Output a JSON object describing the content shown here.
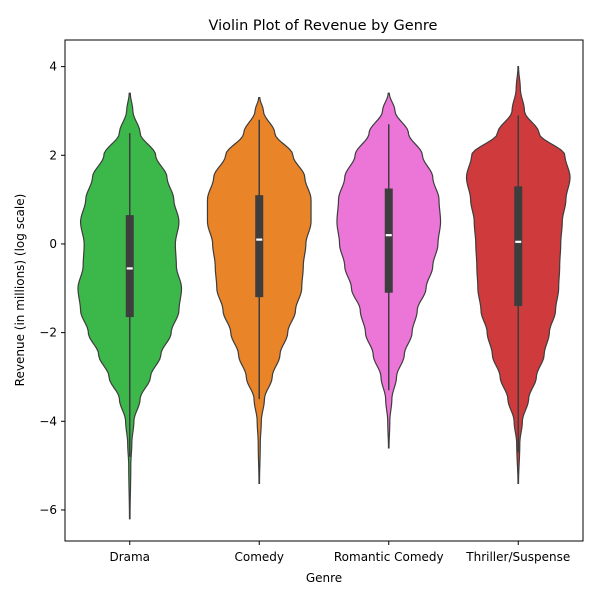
{
  "chart_data": {
    "type": "violin",
    "title": "Violin Plot of Revenue by Genre",
    "xlabel": "Genre",
    "ylabel": "Revenue (in millions) (log scale)",
    "ylim": [
      -6.7,
      4.6
    ],
    "yticks": [
      -6,
      -4,
      -2,
      0,
      2,
      4
    ],
    "ytick_labels": [
      "−6",
      "−4",
      "−2",
      "0",
      "2",
      "4"
    ],
    "categories": [
      "Drama",
      "Comedy",
      "Romantic Comedy",
      "Thriller/Suspense"
    ],
    "colors": [
      "#3cb84a",
      "#ea8428",
      "#ec76d8",
      "#cf3a3c"
    ],
    "series": [
      {
        "category": "Drama",
        "min": -6.2,
        "whisker_low": -4.8,
        "q1": -1.65,
        "median": -0.55,
        "q3": 0.65,
        "whisker_high": 2.5,
        "max": 3.4,
        "density": [
          [
            -6.2,
            0.005
          ],
          [
            -5.0,
            0.02
          ],
          [
            -4.5,
            0.04
          ],
          [
            -4.0,
            0.08
          ],
          [
            -3.5,
            0.2
          ],
          [
            -3.0,
            0.4
          ],
          [
            -2.5,
            0.6
          ],
          [
            -2.0,
            0.8
          ],
          [
            -1.5,
            0.95
          ],
          [
            -1.0,
            1.0
          ],
          [
            -0.5,
            0.9
          ],
          [
            0.0,
            0.88
          ],
          [
            0.5,
            0.95
          ],
          [
            1.0,
            0.85
          ],
          [
            1.5,
            0.72
          ],
          [
            2.0,
            0.5
          ],
          [
            2.5,
            0.2
          ],
          [
            3.0,
            0.06
          ],
          [
            3.4,
            0.01
          ]
        ]
      },
      {
        "category": "Comedy",
        "min": -5.4,
        "whisker_low": -3.5,
        "q1": -1.2,
        "median": 0.1,
        "q3": 1.1,
        "whisker_high": 2.8,
        "max": 3.3,
        "density": [
          [
            -5.4,
            0.005
          ],
          [
            -4.5,
            0.02
          ],
          [
            -4.0,
            0.04
          ],
          [
            -3.5,
            0.1
          ],
          [
            -3.0,
            0.25
          ],
          [
            -2.5,
            0.4
          ],
          [
            -2.0,
            0.55
          ],
          [
            -1.5,
            0.7
          ],
          [
            -1.0,
            0.82
          ],
          [
            -0.5,
            0.85
          ],
          [
            0.0,
            0.9
          ],
          [
            0.5,
            1.0
          ],
          [
            1.0,
            1.0
          ],
          [
            1.5,
            0.88
          ],
          [
            2.0,
            0.65
          ],
          [
            2.5,
            0.3
          ],
          [
            3.0,
            0.08
          ],
          [
            3.3,
            0.01
          ]
        ]
      },
      {
        "category": "Romantic Comedy",
        "min": -4.6,
        "whisker_low": -3.3,
        "q1": -1.1,
        "median": 0.2,
        "q3": 1.25,
        "whisker_high": 2.7,
        "max": 3.4,
        "density": [
          [
            -4.6,
            0.005
          ],
          [
            -4.0,
            0.02
          ],
          [
            -3.5,
            0.06
          ],
          [
            -3.0,
            0.15
          ],
          [
            -2.5,
            0.3
          ],
          [
            -2.0,
            0.45
          ],
          [
            -1.5,
            0.55
          ],
          [
            -1.0,
            0.72
          ],
          [
            -0.5,
            0.85
          ],
          [
            0.0,
            0.95
          ],
          [
            0.5,
            1.0
          ],
          [
            1.0,
            0.97
          ],
          [
            1.5,
            0.85
          ],
          [
            2.0,
            0.65
          ],
          [
            2.5,
            0.38
          ],
          [
            3.0,
            0.12
          ],
          [
            3.4,
            0.01
          ]
        ]
      },
      {
        "category": "Thriller/Suspense",
        "min": -5.4,
        "whisker_low": -4.7,
        "q1": -1.4,
        "median": 0.05,
        "q3": 1.3,
        "whisker_high": 2.9,
        "max": 4.0,
        "density": [
          [
            -5.4,
            0.005
          ],
          [
            -4.5,
            0.03
          ],
          [
            -4.0,
            0.08
          ],
          [
            -3.5,
            0.2
          ],
          [
            -3.0,
            0.35
          ],
          [
            -2.5,
            0.5
          ],
          [
            -2.0,
            0.6
          ],
          [
            -1.5,
            0.72
          ],
          [
            -1.0,
            0.78
          ],
          [
            -0.5,
            0.8
          ],
          [
            0.0,
            0.82
          ],
          [
            0.5,
            0.85
          ],
          [
            1.0,
            0.92
          ],
          [
            1.5,
            1.0
          ],
          [
            2.0,
            0.9
          ],
          [
            2.5,
            0.4
          ],
          [
            3.0,
            0.12
          ],
          [
            3.5,
            0.04
          ],
          [
            4.0,
            0.005
          ]
        ]
      }
    ]
  }
}
